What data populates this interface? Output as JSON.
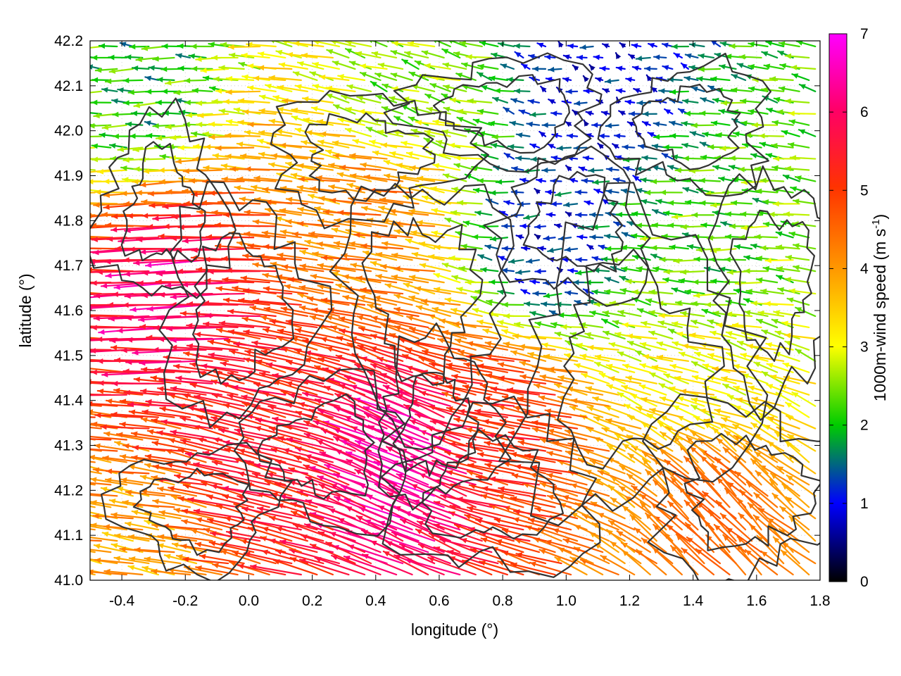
{
  "chart_data": {
    "type": "vector-field",
    "xlabel": "longitude (°)",
    "ylabel": "latitude (°)",
    "xlim": [
      -0.5,
      1.8
    ],
    "ylim": [
      41.0,
      42.2
    ],
    "x_ticks": [
      "-0.4",
      "-0.2",
      "0.0",
      "0.2",
      "0.4",
      "0.6",
      "0.8",
      "1.0",
      "1.2",
      "1.4",
      "1.6",
      "1.8"
    ],
    "y_ticks": [
      "41.0",
      "41.1",
      "41.2",
      "41.3",
      "41.4",
      "41.5",
      "41.6",
      "41.7",
      "41.8",
      "41.9",
      "42.0",
      "42.1",
      "42.2"
    ],
    "grid": true,
    "colorbar": {
      "label": "1000m-wind speed (m s",
      "label_superscript": "-1",
      "label_suffix": ")",
      "range": [
        0,
        7
      ],
      "ticks": [
        "0",
        "1",
        "2",
        "3",
        "4",
        "5",
        "6",
        "7"
      ],
      "colors": [
        "#000000",
        "#0000ff",
        "#00cc00",
        "#ffff00",
        "#ff9900",
        "#ff3300",
        "#ff0066",
        "#ff00ff"
      ]
    },
    "wind_regions": [
      {
        "region": "lon -0.5 to 0.3, lat 41.45 to 41.85",
        "direction_deg": 265,
        "speed": 6.2
      },
      {
        "region": "lon 0.3 to 1.2, lat 41.0 to 41.4",
        "direction_deg": 295,
        "speed": 6.5
      },
      {
        "region": "lon 1.2 to 1.8, lat 41.0 to 41.35",
        "direction_deg": 315,
        "speed": 4.6
      },
      {
        "region": "lon 0.8 to 1.1, lat 41.6 to 41.9",
        "direction_deg": 270,
        "speed": 1.0
      },
      {
        "region": "lon 1.2 to 1.8, lat 41.45 to 41.9",
        "direction_deg": 270,
        "speed": 2.2
      },
      {
        "region": "lon -0.5 to -0.1, lat 42.0 to 42.2",
        "direction_deg": 270,
        "speed": 2.0
      }
    ]
  }
}
